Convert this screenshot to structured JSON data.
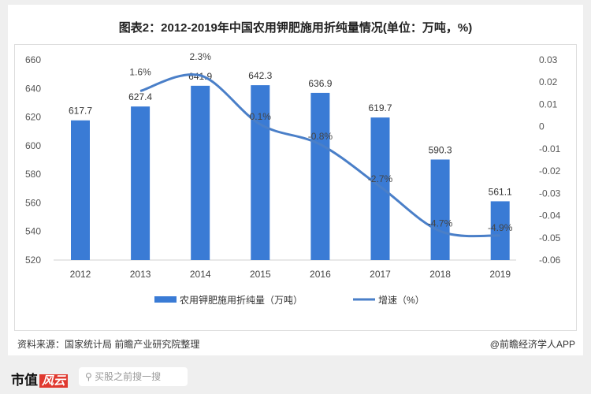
{
  "title": "图表2：2012-2019年中国农用钾肥施用折纯量情况(单位：万吨，%)",
  "chart_data": {
    "type": "bar+line",
    "title": "图表2：2012-2019年中国农用钾肥施用折纯量情况(单位：万吨，%)",
    "categories": [
      "2012",
      "2013",
      "2014",
      "2015",
      "2016",
      "2017",
      "2018",
      "2019"
    ],
    "series": [
      {
        "name": "农用钾肥施用折纯量（万吨）",
        "type": "bar",
        "axis": "left",
        "color": "#3a7bd5",
        "values": [
          617.7,
          627.4,
          641.9,
          642.3,
          636.9,
          619.7,
          590.3,
          561.1
        ]
      },
      {
        "name": "增速（%）",
        "type": "line",
        "axis": "right",
        "color": "#4a7fc8",
        "values": [
          null,
          0.016,
          0.023,
          0.001,
          -0.008,
          -0.027,
          -0.047,
          -0.049
        ],
        "labels": [
          "",
          "1.6%",
          "2.3%",
          "0.1%",
          "-0.8%",
          "-2.7%",
          "-4.7%",
          "-4.9%"
        ]
      }
    ],
    "y_left": {
      "range": [
        520,
        660
      ],
      "ticks": [
        "520",
        "540",
        "560",
        "580",
        "600",
        "620",
        "640",
        "660"
      ]
    },
    "y_right": {
      "range": [
        -0.06,
        0.03
      ],
      "ticks": [
        "-0.06",
        "-0.05",
        "-0.04",
        "-0.03",
        "-0.02",
        "-0.01",
        "0",
        "0.01",
        "0.02",
        "0.03"
      ]
    },
    "grid": false,
    "legend": "bottom"
  },
  "source": "资料来源：国家统计局 前瞻产业研究院整理",
  "credit": "@前瞻经济学人APP",
  "footer": {
    "logo_text": "市值",
    "logo_badge": "风云",
    "search_placeholder": "买股之前搜一搜"
  }
}
